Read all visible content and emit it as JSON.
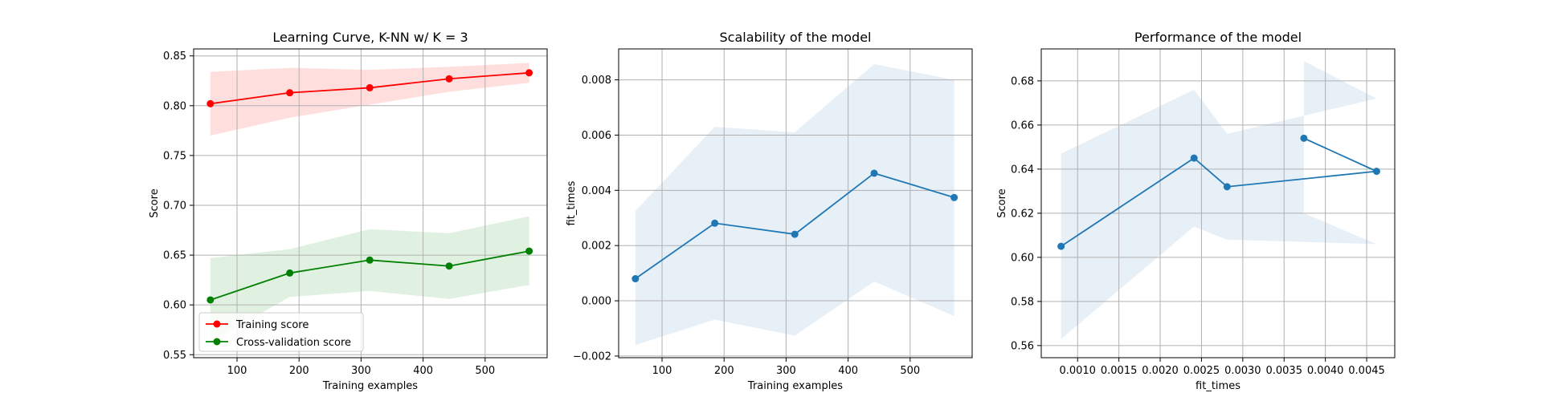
{
  "chart_data": [
    {
      "type": "line",
      "title": "Learning Curve, K-NN w/ K = 3",
      "xlabel": "Training examples",
      "ylabel": "Score",
      "xlim": [
        30,
        600
      ],
      "ylim": [
        0.547,
        0.857
      ],
      "xticks": [
        100,
        200,
        300,
        400,
        500
      ],
      "xtick_labels": [
        "100",
        "200",
        "300",
        "400",
        "500"
      ],
      "yticks": [
        0.55,
        0.6,
        0.65,
        0.7,
        0.75,
        0.8,
        0.85
      ],
      "ytick_labels": [
        "0.55",
        "0.60",
        "0.65",
        "0.70",
        "0.75",
        "0.80",
        "0.85"
      ],
      "grid": true,
      "legend": {
        "placement": "lower-left",
        "entries": [
          "Training score",
          "Cross-validation score"
        ]
      },
      "series": [
        {
          "name": "Training score",
          "color": "#ff0000",
          "band_color": "#ffdede",
          "x": [
            57,
            185,
            314,
            442,
            571
          ],
          "y": [
            0.802,
            0.813,
            0.818,
            0.827,
            0.833
          ],
          "y_upper": [
            0.834,
            0.838,
            0.836,
            0.839,
            0.843
          ],
          "y_lower": [
            0.77,
            0.788,
            0.801,
            0.814,
            0.823
          ]
        },
        {
          "name": "Cross-validation score",
          "color": "#008000",
          "band_color": "#e1f1e1",
          "x": [
            57,
            185,
            314,
            442,
            571
          ],
          "y": [
            0.605,
            0.632,
            0.645,
            0.639,
            0.654
          ],
          "y_upper": [
            0.647,
            0.656,
            0.676,
            0.672,
            0.689
          ],
          "y_lower": [
            0.563,
            0.608,
            0.614,
            0.606,
            0.62
          ]
        }
      ]
    },
    {
      "type": "line",
      "title": "Scalability of the model",
      "xlabel": "Training examples",
      "ylabel": "fit_times",
      "xlim": [
        30,
        600
      ],
      "ylim": [
        -0.00206,
        0.00912
      ],
      "xticks": [
        100,
        200,
        300,
        400,
        500
      ],
      "xtick_labels": [
        "100",
        "200",
        "300",
        "400",
        "500"
      ],
      "yticks": [
        -0.002,
        0.0,
        0.002,
        0.004,
        0.006,
        0.008
      ],
      "ytick_labels": [
        "−0.002",
        "0.000",
        "0.002",
        "0.004",
        "0.006",
        "0.008"
      ],
      "grid": true,
      "series": [
        {
          "color": "#1f77b4",
          "band_color": "#e7eff7",
          "x": [
            57,
            185,
            314,
            442,
            571
          ],
          "y": [
            0.0008,
            0.00281,
            0.00241,
            0.00462,
            0.00374
          ],
          "y_upper": [
            0.00325,
            0.0063,
            0.0061,
            0.00857,
            0.008
          ],
          "y_lower": [
            -0.0016,
            -0.00068,
            -0.00126,
            0.0007,
            -0.00055
          ]
        }
      ]
    },
    {
      "type": "line",
      "title": "Performance of the model",
      "xlabel": "fit_times",
      "ylabel": "Score",
      "xlim": [
        0.00056,
        0.00484
      ],
      "ylim": [
        0.5545,
        0.6945
      ],
      "xticks": [
        0.001,
        0.0015,
        0.002,
        0.0025,
        0.003,
        0.0035,
        0.004,
        0.0045
      ],
      "xtick_labels": [
        "0.0010",
        "0.0015",
        "0.0020",
        "0.0025",
        "0.0030",
        "0.0035",
        "0.0040",
        "0.0045"
      ],
      "yticks": [
        0.56,
        0.58,
        0.6,
        0.62,
        0.64,
        0.66,
        0.68
      ],
      "ytick_labels": [
        "0.56",
        "0.58",
        "0.60",
        "0.62",
        "0.64",
        "0.66",
        "0.68"
      ],
      "grid": true,
      "series": [
        {
          "color": "#1f77b4",
          "band_color": "#e7eff7",
          "x": [
            0.0008,
            0.00241,
            0.00281,
            0.00462,
            0.00374
          ],
          "y": [
            0.605,
            0.645,
            0.632,
            0.639,
            0.654
          ],
          "y_upper": [
            0.647,
            0.676,
            0.656,
            0.672,
            0.689
          ],
          "y_lower": [
            0.563,
            0.614,
            0.608,
            0.606,
            0.62
          ]
        }
      ]
    }
  ]
}
